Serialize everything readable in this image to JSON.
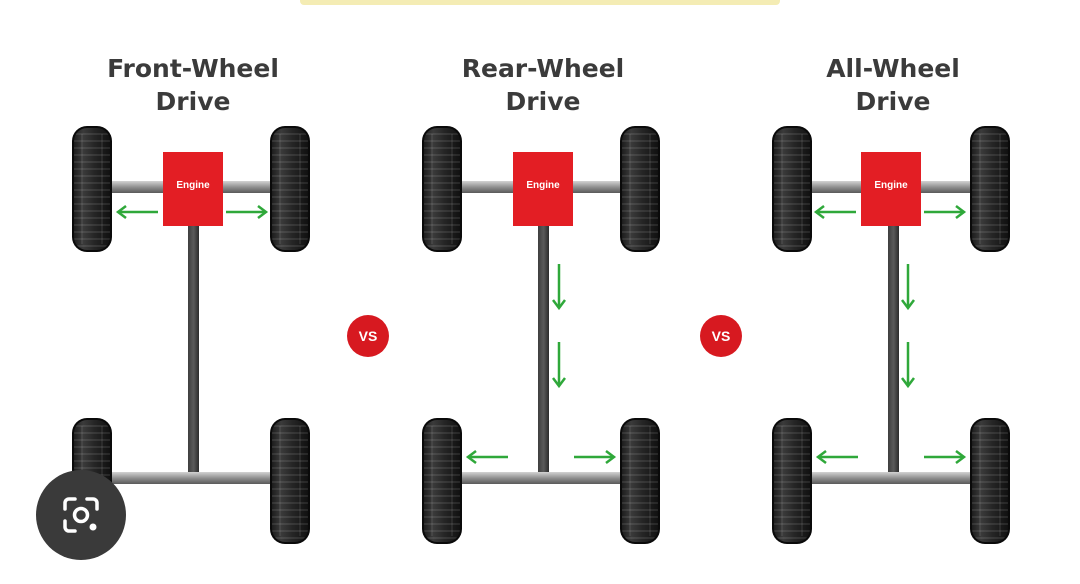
{
  "diagrams": [
    {
      "title_line1": "Front-Wheel",
      "title_line2": "Drive",
      "engine_label": "Engine"
    },
    {
      "title_line1": "Rear-Wheel",
      "title_line2": "Drive",
      "engine_label": "Engine"
    },
    {
      "title_line1": "All-Wheel",
      "title_line2": "Drive",
      "engine_label": "Engine"
    }
  ],
  "separators": [
    "VS",
    "VS"
  ],
  "colors": {
    "engine": "#e31e24",
    "arrow": "#2fa83a",
    "vs_badge": "#d71920",
    "title": "#3b3b3b"
  },
  "overlay_icon": "visual-search-lens-icon"
}
